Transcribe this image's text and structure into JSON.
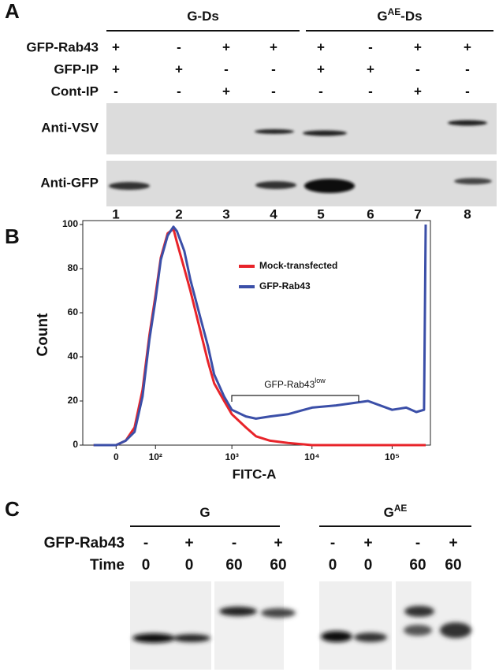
{
  "panel_a": {
    "label": "A",
    "groups": [
      {
        "text": "G-Ds"
      },
      {
        "text": "G",
        "sup": "AE",
        "rest": "-Ds"
      }
    ],
    "rows": [
      {
        "label": "GFP-Rab43",
        "cells": [
          "+",
          "-",
          "+",
          "+",
          "+",
          "-",
          "+",
          "+"
        ]
      },
      {
        "label": "GFP-IP",
        "cells": [
          "+",
          "+",
          "-",
          "-",
          "+",
          "+",
          "-",
          "-"
        ]
      },
      {
        "label": "Cont-IP",
        "cells": [
          "-",
          "-",
          "+",
          "-",
          "-",
          "-",
          "+",
          "-"
        ]
      }
    ],
    "blots": [
      "Anti-VSV",
      "Anti-GFP"
    ],
    "lanes": [
      "1",
      "2",
      "3",
      "4",
      "5",
      "6",
      "7",
      "8"
    ]
  },
  "chart_data": {
    "type": "line",
    "panel_label": "B",
    "x_label": "FITC-A",
    "y_label": "Count",
    "xscale": "biexponential",
    "xlim": [
      -80,
      262144
    ],
    "xticks": [
      0,
      {
        "value": 100,
        "label": "10²"
      },
      {
        "value": 1000,
        "label": "10³"
      },
      {
        "value": 10000,
        "label": "10⁴"
      },
      {
        "value": 100000,
        "label": "10⁵"
      }
    ],
    "ylim": [
      0,
      100
    ],
    "yticks": [
      0,
      20,
      40,
      60,
      80,
      100
    ],
    "legend": "top-right",
    "annotation": {
      "text": "GFP-Rab43",
      "sup": "low"
    },
    "x": [
      -50,
      0,
      20,
      40,
      60,
      80,
      100,
      120,
      150,
      180,
      200,
      250,
      300,
      400,
      500,
      600,
      800,
      1000,
      1500,
      2000,
      3000,
      5000,
      10000,
      20000,
      50000,
      100000,
      150000,
      200000,
      250000,
      262144
    ],
    "series": [
      {
        "name": "Mock-transfected",
        "color": "#e8242a",
        "values": [
          0,
          0,
          2,
          8,
          25,
          50,
          68,
          85,
          96,
          98,
          92,
          80,
          70,
          52,
          38,
          28,
          20,
          14,
          8,
          4,
          2,
          1,
          0,
          0,
          0,
          0,
          0,
          0,
          0,
          0
        ]
      },
      {
        "name": "GFP-Rab43",
        "color": "#3b4fa8",
        "values": [
          0,
          0,
          2,
          6,
          22,
          48,
          66,
          84,
          95,
          99,
          97,
          88,
          75,
          58,
          45,
          32,
          22,
          16,
          13,
          12,
          13,
          14,
          17,
          18,
          20,
          16,
          17,
          15,
          16,
          100
        ]
      }
    ]
  },
  "panel_c": {
    "label": "C",
    "groups": [
      {
        "text": "G"
      },
      {
        "text": "G",
        "sup": "AE"
      }
    ],
    "rows": [
      {
        "label": "GFP-Rab43",
        "cells": [
          "-",
          "+",
          "-",
          "+",
          "-",
          "+",
          "-",
          "+"
        ]
      },
      {
        "label": "Time",
        "cells": [
          "0",
          "0",
          "60",
          "60",
          "0",
          "0",
          "60",
          "60"
        ]
      }
    ]
  }
}
